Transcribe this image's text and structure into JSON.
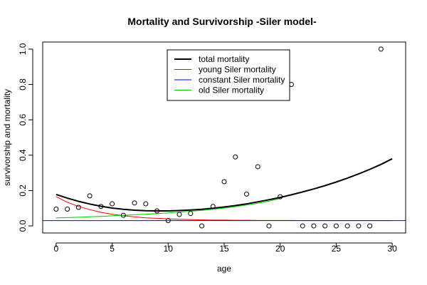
{
  "chart_data": {
    "type": "scatter",
    "title": "Mortality and Survivorship -Siler model-",
    "xlabel": "age",
    "ylabel": "survivorship and mortality",
    "xlim": [
      -1.2,
      31.2
    ],
    "ylim": [
      -0.04,
      1.04
    ],
    "x_ticks": [
      0,
      5,
      10,
      15,
      20,
      25,
      30
    ],
    "x_tick_labels": [
      "0",
      "5",
      "10",
      "15",
      "20",
      "25",
      "30"
    ],
    "y_ticks": [
      0.0,
      0.2,
      0.4,
      0.6,
      0.8,
      1.0
    ],
    "y_tick_labels": [
      "0.0",
      "0.2",
      "0.4",
      "0.6",
      "0.8",
      "1.0"
    ],
    "legend_position": "top-center",
    "points": {
      "x": [
        0,
        1,
        2,
        3,
        4,
        5,
        6,
        7,
        8,
        9,
        10,
        11,
        12,
        13,
        14,
        15,
        16,
        17,
        18,
        19,
        20,
        21,
        22,
        23,
        24,
        25,
        26,
        27,
        28,
        29
      ],
      "y": [
        0.095,
        0.095,
        0.105,
        0.17,
        0.11,
        0.125,
        0.06,
        0.13,
        0.125,
        0.085,
        0.03,
        0.065,
        0.07,
        0.0,
        0.11,
        0.25,
        0.39,
        0.18,
        0.335,
        0.0,
        0.165,
        0.8,
        0.0,
        0.0,
        0.0,
        0.0,
        0.0,
        0.0,
        0.0,
        1.0
      ]
    },
    "series": [
      {
        "name": "total mortality",
        "color": "#000000",
        "width": 2,
        "x": [
          0,
          1,
          2,
          3,
          4,
          5,
          6,
          7,
          8,
          9,
          10,
          11,
          12,
          13,
          14,
          15,
          16,
          17,
          18,
          19,
          20,
          21,
          22,
          23,
          24,
          25,
          26,
          27,
          28,
          29,
          30
        ],
        "y": [
          0.178,
          0.157,
          0.139,
          0.124,
          0.111,
          0.101,
          0.094,
          0.089,
          0.086,
          0.085,
          0.085,
          0.087,
          0.09,
          0.094,
          0.1,
          0.107,
          0.115,
          0.125,
          0.136,
          0.148,
          0.161,
          0.176,
          0.192,
          0.209,
          0.228,
          0.248,
          0.27,
          0.294,
          0.32,
          0.348,
          0.38
        ]
      },
      {
        "name": "young Siler mortality",
        "color": "#ff0000",
        "width": 1,
        "x": [
          0,
          1,
          2,
          3,
          4,
          5,
          6,
          7,
          8,
          9,
          10,
          11,
          12,
          13,
          14,
          15,
          16,
          17,
          18,
          19,
          20,
          21,
          22,
          23,
          24,
          25,
          26,
          27,
          28,
          29,
          30
        ],
        "y": [
          0.165,
          0.134,
          0.11,
          0.092,
          0.077,
          0.066,
          0.058,
          0.051,
          0.046,
          0.043,
          0.04,
          0.037,
          0.036,
          0.034,
          0.033,
          0.033,
          0.032,
          0.032,
          0.031,
          0.031,
          0.031,
          0.031,
          0.03,
          0.03,
          0.03,
          0.03,
          0.03,
          0.03,
          0.03,
          0.03,
          0.03
        ]
      },
      {
        "name": "constant Siler mortality",
        "color": "#0000ff",
        "width": 1,
        "x": [
          -1.2,
          31.2
        ],
        "y": [
          0.03,
          0.03
        ]
      },
      {
        "name": "old Siler mortality",
        "color": "#00cc00",
        "width": 1,
        "x": [
          0,
          1,
          2,
          3,
          4,
          5,
          6,
          7,
          8,
          9,
          10,
          11,
          12,
          13,
          14,
          15,
          16,
          17,
          18,
          19,
          20
        ],
        "y": [
          0.045,
          0.047,
          0.049,
          0.052,
          0.054,
          0.057,
          0.06,
          0.063,
          0.066,
          0.07,
          0.074,
          0.078,
          0.083,
          0.088,
          0.094,
          0.101,
          0.109,
          0.118,
          0.128,
          0.14,
          0.155
        ]
      }
    ]
  }
}
